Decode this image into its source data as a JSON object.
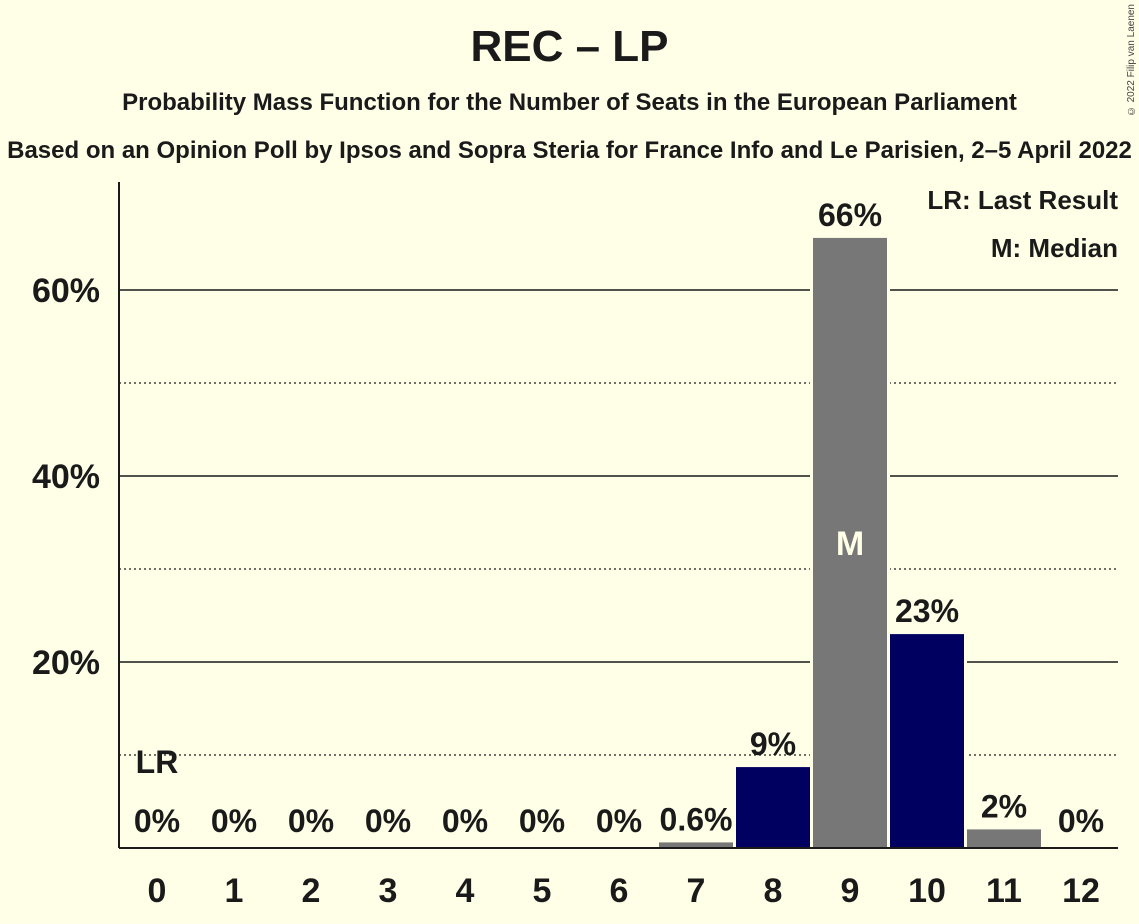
{
  "header": {
    "title": "REC – LP",
    "subtitle": "Probability Mass Function for the Number of Seats in the European Parliament",
    "source": "Based on an Opinion Poll by Ipsos and Sopra Steria for France Info and Le Parisien, 2–5 April 2022",
    "copyright": "© 2022 Filip van Laenen"
  },
  "legend": {
    "last_result": "LR: Last Result",
    "median": "M: Median"
  },
  "colors": {
    "background": "#FFFEE6",
    "in_range": "#000060",
    "outside_range": "#777777",
    "text": "#1a1a1a"
  },
  "chart_data": {
    "type": "bar",
    "categories": [
      "0",
      "1",
      "2",
      "3",
      "4",
      "5",
      "6",
      "7",
      "8",
      "9",
      "10",
      "11",
      "12"
    ],
    "values": [
      0,
      0,
      0,
      0,
      0,
      0,
      0,
      0.6,
      8.7,
      65.6,
      23.0,
      2.0,
      0
    ],
    "data_labels": [
      "0%",
      "0%",
      "0%",
      "0%",
      "0%",
      "0%",
      "0%",
      "0.6%",
      "9%",
      "66%",
      "23%",
      "2%",
      "0%"
    ],
    "bar_colors": [
      "#777777",
      "#777777",
      "#777777",
      "#777777",
      "#777777",
      "#777777",
      "#777777",
      "#777777",
      "#000060",
      "#777777",
      "#000060",
      "#777777",
      "#777777"
    ],
    "ylim": [
      0,
      70
    ],
    "yticks": [
      20,
      40,
      60
    ],
    "ytick_labels": [
      "20%",
      "40%",
      "60%"
    ],
    "minor_grid": [
      10,
      30,
      50
    ],
    "last_result_index": 0,
    "last_result_label": "LR",
    "median_index": 9,
    "median_label": "M"
  }
}
